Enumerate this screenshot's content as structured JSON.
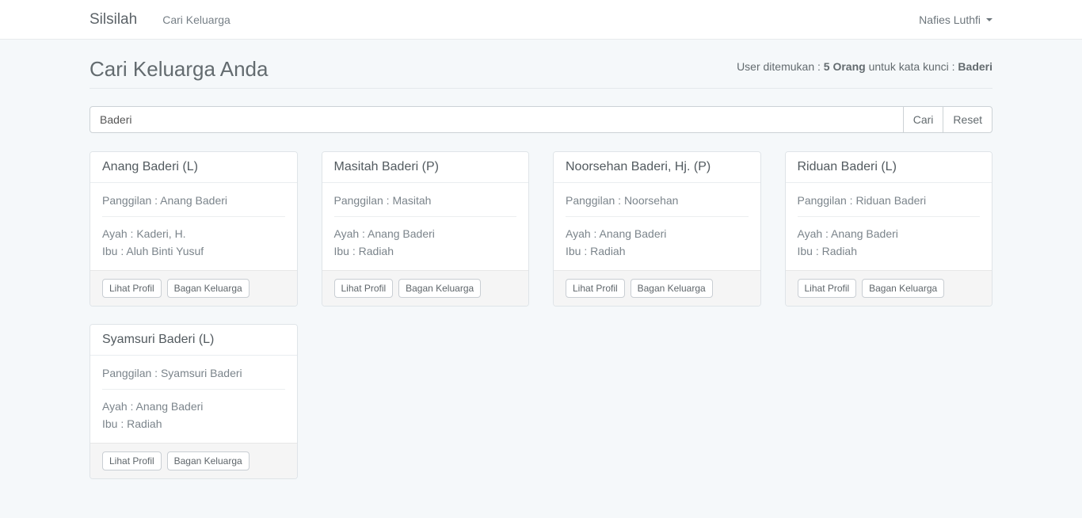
{
  "navbar": {
    "brand": "Silsilah",
    "nav_item": "Cari Keluarga",
    "user_menu_label": "Nafies Luthfi"
  },
  "header": {
    "title": "Cari Keluarga Anda",
    "result_prefix": "User ditemukan : ",
    "result_count": "5 Orang",
    "result_middle": " untuk kata kunci : ",
    "result_keyword": "Baderi"
  },
  "search": {
    "input_value": "Baderi",
    "cari_label": "Cari",
    "reset_label": "Reset"
  },
  "card_buttons": {
    "lihat_profil": "Lihat Profil",
    "bagan_keluarga": "Bagan Keluarga"
  },
  "cards": [
    {
      "title": "Anang Baderi (L)",
      "panggilan": "Panggilan : Anang Baderi",
      "ayah": "Ayah : Kaderi, H.",
      "ibu": "Ibu : Aluh Binti Yusuf"
    },
    {
      "title": "Masitah Baderi (P)",
      "panggilan": "Panggilan : Masitah",
      "ayah": "Ayah : Anang Baderi",
      "ibu": "Ibu : Radiah"
    },
    {
      "title": "Noorsehan Baderi, Hj. (P)",
      "panggilan": "Panggilan : Noorsehan",
      "ayah": "Ayah : Anang Baderi",
      "ibu": "Ibu : Radiah"
    },
    {
      "title": "Riduan Baderi (L)",
      "panggilan": "Panggilan : Riduan Baderi",
      "ayah": "Ayah : Anang Baderi",
      "ibu": "Ibu : Radiah"
    },
    {
      "title": "Syamsuri Baderi (L)",
      "panggilan": "Panggilan : Syamsuri Baderi",
      "ayah": "Ayah : Anang Baderi",
      "ibu": "Ibu : Radiah"
    }
  ],
  "colors": {
    "page_background": "#f5f8fa",
    "navbar_background": "#ffffff",
    "text": "#636b6f",
    "panel_border": "#dfe4e8",
    "panel_footer_background": "#f5f5f5"
  }
}
